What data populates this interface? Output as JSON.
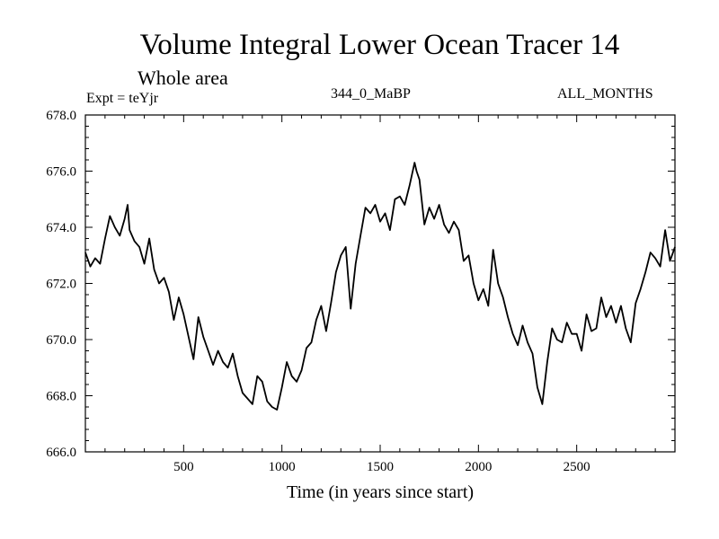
{
  "header": {
    "title": "Volume Integral Lower Ocean Tracer 14",
    "subtitle": "Whole area",
    "experiment": "Expt = teYjr",
    "period": "344_0_MaBP",
    "months": "ALL_MONTHS"
  },
  "chart_data": {
    "type": "line",
    "title": "Volume Integral Lower Ocean Tracer 14",
    "subtitle": "Whole area",
    "xlabel": "Time (in years since start)",
    "ylabel": "",
    "xlim": [
      0,
      3000
    ],
    "ylim": [
      666.0,
      678.0
    ],
    "x_ticks": [
      500,
      1000,
      1500,
      2000,
      2500
    ],
    "x_tick_labels": [
      "500",
      "1000",
      "1500",
      "2000",
      "2500"
    ],
    "y_ticks": [
      666,
      668,
      670,
      672,
      674,
      676,
      678
    ],
    "y_tick_labels": [
      "666.0",
      "668.0",
      "670.0",
      "672.0",
      "674.0",
      "676.0",
      "678.0"
    ],
    "grid": false,
    "line_color": "#000000",
    "series": [
      {
        "name": "Lower Ocean Tracer 14",
        "x": [
          0,
          25,
          50,
          75,
          100,
          125,
          150,
          175,
          200,
          215,
          225,
          250,
          275,
          300,
          325,
          350,
          375,
          400,
          425,
          450,
          475,
          500,
          525,
          550,
          575,
          600,
          625,
          650,
          675,
          700,
          725,
          750,
          775,
          800,
          825,
          850,
          875,
          900,
          925,
          950,
          975,
          1000,
          1025,
          1050,
          1075,
          1100,
          1125,
          1150,
          1175,
          1200,
          1225,
          1250,
          1275,
          1300,
          1325,
          1350,
          1375,
          1400,
          1425,
          1450,
          1475,
          1500,
          1525,
          1550,
          1575,
          1600,
          1625,
          1650,
          1675,
          1685,
          1700,
          1725,
          1750,
          1775,
          1800,
          1825,
          1850,
          1875,
          1900,
          1925,
          1950,
          1975,
          2000,
          2025,
          2050,
          2075,
          2100,
          2125,
          2150,
          2175,
          2200,
          2225,
          2250,
          2275,
          2300,
          2325,
          2350,
          2375,
          2400,
          2425,
          2450,
          2475,
          2500,
          2525,
          2550,
          2575,
          2600,
          2625,
          2650,
          2675,
          2700,
          2725,
          2750,
          2775,
          2800,
          2825,
          2850,
          2875,
          2900,
          2925,
          2950,
          2975,
          3000
        ],
        "values": [
          673.1,
          672.6,
          672.9,
          672.7,
          673.6,
          674.4,
          674.0,
          673.7,
          674.3,
          674.8,
          673.9,
          673.5,
          673.3,
          672.7,
          673.6,
          672.5,
          672.0,
          672.2,
          671.7,
          670.7,
          671.5,
          670.9,
          670.1,
          669.3,
          670.8,
          670.1,
          669.6,
          669.1,
          669.6,
          669.2,
          669.0,
          669.5,
          668.7,
          668.1,
          667.9,
          667.7,
          668.7,
          668.5,
          667.8,
          667.6,
          667.5,
          668.3,
          669.2,
          668.7,
          668.5,
          668.9,
          669.7,
          669.9,
          670.7,
          671.2,
          670.3,
          671.3,
          672.4,
          673.0,
          673.3,
          671.1,
          672.7,
          673.7,
          674.7,
          674.5,
          674.8,
          674.2,
          674.5,
          673.9,
          675.0,
          675.1,
          674.8,
          675.5,
          676.3,
          676.0,
          675.7,
          674.1,
          674.7,
          674.3,
          674.8,
          674.1,
          673.8,
          674.2,
          673.9,
          672.8,
          673.0,
          672.0,
          671.4,
          671.8,
          671.2,
          673.2,
          672.0,
          671.5,
          670.8,
          670.2,
          669.8,
          670.5,
          669.9,
          669.5,
          668.3,
          667.7,
          669.2,
          670.4,
          670.0,
          669.9,
          670.6,
          670.2,
          670.2,
          669.6,
          670.9,
          670.3,
          670.4,
          671.5,
          670.8,
          671.2,
          670.6,
          671.2,
          670.4,
          669.9,
          671.3,
          671.8,
          672.4,
          673.1,
          672.9,
          672.6,
          673.9,
          672.8,
          673.3
        ]
      }
    ]
  }
}
